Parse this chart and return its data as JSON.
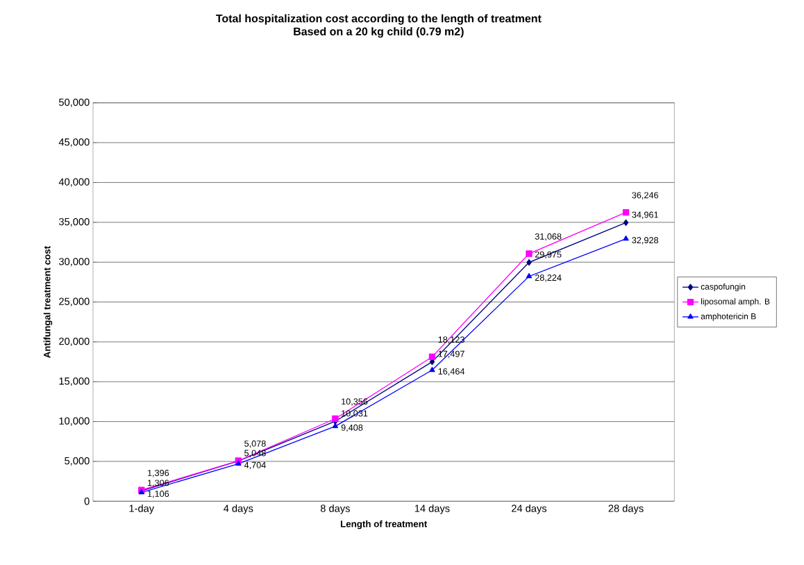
{
  "chart_data": {
    "type": "line",
    "title": "Total hospitalization cost according to the length of treatment",
    "subtitle": "Based on a 20 kg child (0.79 m2)",
    "xlabel": "Length of treatment",
    "ylabel": "Antifungal treatment cost",
    "categories": [
      "1-day",
      "4 days",
      "8 days",
      "14 days",
      "24 days",
      "28 days"
    ],
    "series": [
      {
        "name": "caspofungin",
        "color": "#000080",
        "marker": "diamond",
        "values": [
          1306,
          5048,
          10031,
          17497,
          29975,
          34961
        ],
        "value_labels": [
          "1,306",
          "5,048",
          "10,031",
          "17,497",
          "29,975",
          "34,961"
        ]
      },
      {
        "name": "liposomal amph. B",
        "color": "#ff00ff",
        "marker": "square",
        "values": [
          1396,
          5078,
          10356,
          18123,
          31068,
          36246
        ],
        "value_labels": [
          "1,396",
          "5,078",
          "10,356",
          "18,123",
          "31,068",
          "36,246"
        ]
      },
      {
        "name": "amphotericin B",
        "color": "#0000ff",
        "marker": "triangle",
        "values": [
          1106,
          4704,
          9408,
          16464,
          28224,
          32928
        ],
        "value_labels": [
          "1,106",
          "4,704",
          "9,408",
          "16,464",
          "28,224",
          "32,928"
        ]
      }
    ],
    "ylim": [
      0,
      50000
    ],
    "yticks": [
      {
        "value": 0,
        "label": "0"
      },
      {
        "value": 5000,
        "label": "5,000"
      },
      {
        "value": 10000,
        "label": "10,000"
      },
      {
        "value": 15000,
        "label": "15,000"
      },
      {
        "value": 20000,
        "label": "20,000"
      },
      {
        "value": 25000,
        "label": "25,000"
      },
      {
        "value": 30000,
        "label": "30,000"
      },
      {
        "value": 35000,
        "label": "35,000"
      },
      {
        "value": 40000,
        "label": "40,000"
      },
      {
        "value": 45000,
        "label": "45,000"
      },
      {
        "value": 50000,
        "label": "50,000"
      }
    ],
    "grid": "y",
    "legend": "right"
  }
}
